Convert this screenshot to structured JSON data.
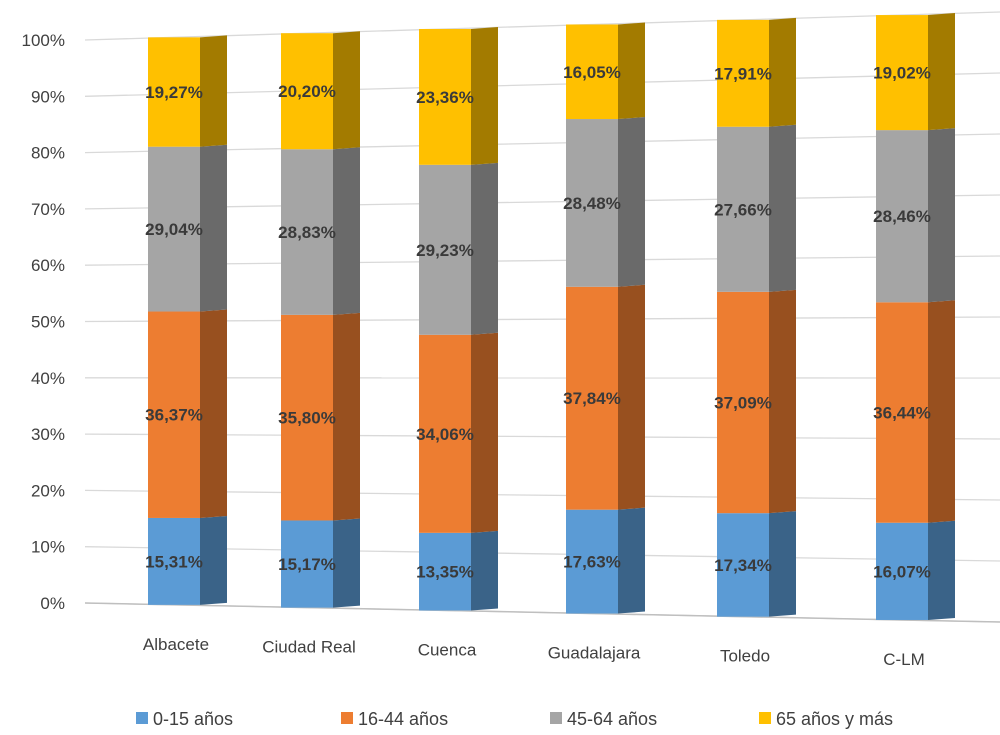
{
  "chart_data": {
    "type": "bar",
    "stacked": true,
    "percent_stacked": true,
    "three_d": true,
    "categories": [
      "Albacete",
      "Ciudad Real",
      "Cuenca",
      "Guadalajara",
      "Toledo",
      "C-LM"
    ],
    "y_ticks": [
      "0%",
      "10%",
      "20%",
      "30%",
      "40%",
      "50%",
      "60%",
      "70%",
      "80%",
      "90%",
      "100%"
    ],
    "ylim": [
      0,
      100
    ],
    "grid": true,
    "legend_position": "bottom",
    "series": [
      {
        "name": "0-15 años",
        "color": "#5B9BD5",
        "values": [
          15.31,
          15.17,
          13.35,
          17.63,
          17.34,
          16.07
        ],
        "labels": [
          "15,31%",
          "15,17%",
          "13,35%",
          "17,63%",
          "17,34%",
          "16,07%"
        ]
      },
      {
        "name": "16-44 años",
        "color": "#ED7D31",
        "values": [
          36.37,
          35.8,
          34.06,
          37.84,
          37.09,
          36.44
        ],
        "labels": [
          "36,37%",
          "35,80%",
          "34,06%",
          "37,84%",
          "37,09%",
          "36,44%"
        ]
      },
      {
        "name": "45-64 años",
        "color": "#A5A5A5",
        "values": [
          29.04,
          28.83,
          29.23,
          28.48,
          27.66,
          28.46
        ],
        "labels": [
          "29,04%",
          "28,83%",
          "29,23%",
          "28,48%",
          "27,66%",
          "28,46%"
        ]
      },
      {
        "name": "65 años y más",
        "color": "#FFC000",
        "values": [
          19.27,
          20.2,
          23.36,
          16.05,
          17.91,
          19.02
        ],
        "labels": [
          "19,27%",
          "20,20%",
          "23,36%",
          "16,05%",
          "17,91%",
          "19,02%"
        ]
      }
    ]
  }
}
